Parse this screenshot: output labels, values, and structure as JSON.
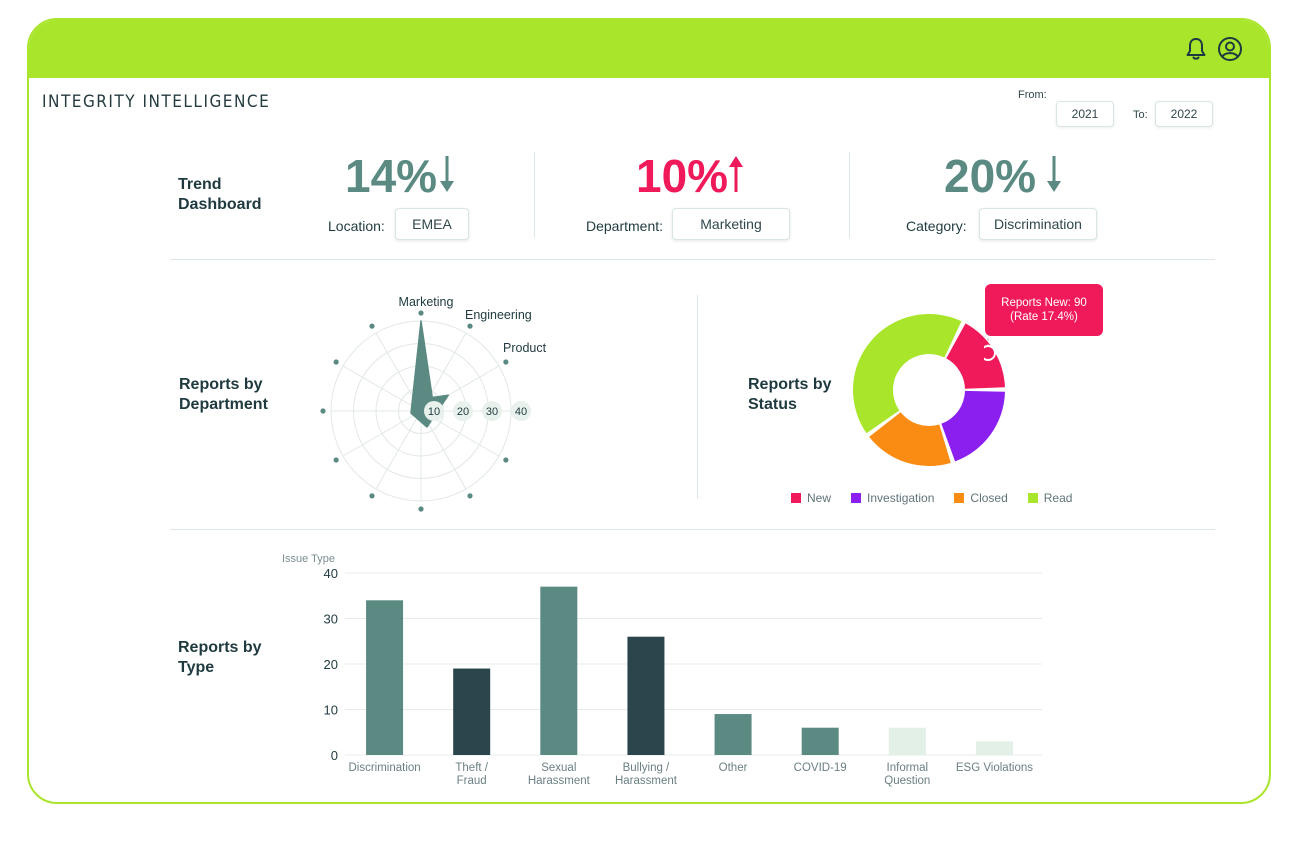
{
  "app": {
    "brand": "INTEGRITY INTELLIGENCE"
  },
  "date_range": {
    "from_label": "From:",
    "from_value": "2021",
    "to_label": "To:",
    "to_value": "2022"
  },
  "icons": {
    "bell": "bell-icon",
    "user": "user-circle-icon"
  },
  "trend": {
    "title": "Trend Dashboard",
    "kpis": [
      {
        "value": "14%",
        "direction": "down",
        "color": "#5a8a82",
        "label": "Location:",
        "selection": "EMEA"
      },
      {
        "value": "10%",
        "direction": "up",
        "color": "#f0195a",
        "label": "Department:",
        "selection": "Marketing"
      },
      {
        "value": "20%",
        "direction": "down",
        "color": "#5a8a82",
        "label": "Category:",
        "selection": "Discrimination"
      }
    ]
  },
  "department": {
    "title": "Reports by Department",
    "chart_data": {
      "type": "radar",
      "axes_labeled": [
        "Marketing",
        "Engineering",
        "Product"
      ],
      "ring_labels": [
        "10",
        "20",
        "30",
        "40"
      ],
      "values": {
        "Marketing": 40,
        "Engineering": 10,
        "Product": 14
      }
    }
  },
  "status": {
    "title": "Reports by Status",
    "tooltip_line1": "Reports New: 90",
    "tooltip_line2": "(Rate 17.4%)",
    "chart_data": {
      "type": "pie",
      "categories": [
        "New",
        "Investigation",
        "Closed",
        "Read"
      ],
      "values": [
        17.4,
        20,
        20,
        42.6
      ],
      "colors": [
        "#f0195a",
        "#8b1ff0",
        "#fb8c13",
        "#a8e52b"
      ]
    }
  },
  "type_chart": {
    "title": "Reports by Type",
    "chart_data": {
      "type": "bar",
      "ylabel": "Issue Type",
      "ylim": [
        0,
        40
      ],
      "yticks": [
        "0",
        "10",
        "20",
        "30",
        "40"
      ],
      "categories": [
        [
          "Discrimination"
        ],
        [
          "Theft /",
          "Fraud"
        ],
        [
          "Sexual",
          "Harassment"
        ],
        [
          "Bullying /",
          "Harassment"
        ],
        [
          "Other"
        ],
        [
          "COVID-19"
        ],
        [
          "Informal",
          "Question"
        ],
        [
          "ESG Violations"
        ]
      ],
      "values": [
        34,
        19,
        37,
        26,
        9,
        6,
        6,
        3
      ],
      "colors": [
        "#5a8a82",
        "#2a454b",
        "#5a8a82",
        "#2a454b",
        "#5a8a82",
        "#5a8a82",
        "#e2f0e8",
        "#e2f0e8"
      ]
    }
  }
}
